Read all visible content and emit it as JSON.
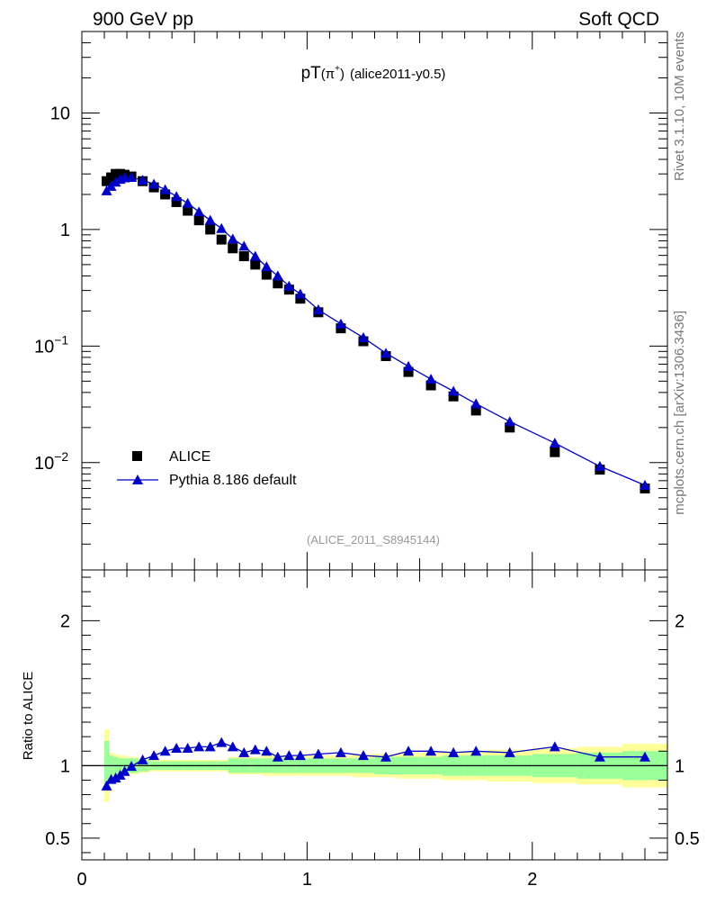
{
  "header": {
    "left": "900 GeV pp",
    "right": "Soft QCD"
  },
  "side_text": {
    "version": "Rivet 3.1.10,  10M events",
    "source": "mcplots.cern.ch [arXiv:1306.3436]"
  },
  "chart_data": [
    {
      "type": "scatter",
      "panel": "main",
      "title": "pT(π⁺) (alice2011-y0.5)",
      "title_main": "pT",
      "title_particle": "(π",
      "title_sup": "+",
      "title_close": ")",
      "title_tag": "(alice2011-y0.5)",
      "watermark": "(ALICE_2011_S8945144)",
      "xlim": [
        0,
        2.6
      ],
      "ylim": [
        0.0012,
        50
      ],
      "yscale": "log",
      "ytick_labels": [
        {
          "value": 10,
          "text": "10"
        },
        {
          "value": 1,
          "text": "1"
        },
        {
          "value": 0.1,
          "base": "10",
          "exp": "−1"
        },
        {
          "value": 0.01,
          "base": "10",
          "exp": "−2"
        }
      ],
      "legend": {
        "position": "bottom-left"
      },
      "series": [
        {
          "name": "ALICE",
          "marker": "square",
          "color": "#000000",
          "x": [
            0.11,
            0.13,
            0.15,
            0.17,
            0.19,
            0.22,
            0.27,
            0.32,
            0.37,
            0.42,
            0.47,
            0.52,
            0.57,
            0.62,
            0.67,
            0.72,
            0.77,
            0.82,
            0.87,
            0.92,
            0.97,
            1.05,
            1.15,
            1.25,
            1.35,
            1.45,
            1.55,
            1.65,
            1.75,
            1.9,
            2.1,
            2.3,
            2.5
          ],
          "y": [
            2.6,
            2.8,
            3.0,
            3.0,
            2.95,
            2.85,
            2.6,
            2.3,
            2.0,
            1.72,
            1.45,
            1.2,
            1.0,
            0.82,
            0.69,
            0.59,
            0.5,
            0.41,
            0.345,
            0.305,
            0.255,
            0.195,
            0.142,
            0.11,
            0.082,
            0.06,
            0.046,
            0.037,
            0.028,
            0.02,
            0.0123,
            0.0087,
            0.006
          ]
        },
        {
          "name": "Pythia 8.186 default",
          "marker": "triangle",
          "color": "#0000cc",
          "x": [
            0.11,
            0.13,
            0.15,
            0.17,
            0.19,
            0.22,
            0.27,
            0.32,
            0.37,
            0.42,
            0.47,
            0.52,
            0.57,
            0.62,
            0.67,
            0.72,
            0.77,
            0.82,
            0.87,
            0.92,
            0.97,
            1.05,
            1.15,
            1.25,
            1.35,
            1.45,
            1.55,
            1.65,
            1.75,
            1.9,
            2.1,
            2.3,
            2.5
          ],
          "y": [
            2.15,
            2.35,
            2.55,
            2.7,
            2.78,
            2.8,
            2.65,
            2.45,
            2.2,
            1.92,
            1.68,
            1.42,
            1.2,
            1.02,
            0.83,
            0.72,
            0.59,
            0.48,
            0.4,
            0.327,
            0.28,
            0.205,
            0.155,
            0.118,
            0.087,
            0.067,
            0.052,
            0.041,
            0.032,
            0.0225,
            0.0147,
            0.0093,
            0.0064
          ]
        }
      ]
    },
    {
      "type": "line",
      "panel": "ratio",
      "ylabel": "Ratio to ALICE",
      "xlim": [
        0,
        2.6
      ],
      "ylim": [
        0.35,
        2.35
      ],
      "xtick_labels": [
        "0",
        "1",
        "2"
      ],
      "ytick_labels": [
        "0.5",
        "1",
        "2"
      ],
      "bands": {
        "edges": [
          0.1,
          0.12,
          0.14,
          0.16,
          0.18,
          0.2,
          0.25,
          0.3,
          0.35,
          0.4,
          0.45,
          0.5,
          0.55,
          0.6,
          0.65,
          0.7,
          0.75,
          0.8,
          0.85,
          0.9,
          0.95,
          1.0,
          1.1,
          1.2,
          1.3,
          1.4,
          1.5,
          1.6,
          1.7,
          1.8,
          2.0,
          2.2,
          2.4,
          2.6
        ],
        "green_half": [
          0.17,
          0.07,
          0.06,
          0.05,
          0.05,
          0.05,
          0.04,
          0.03,
          0.03,
          0.03,
          0.03,
          0.03,
          0.03,
          0.03,
          0.05,
          0.05,
          0.05,
          0.05,
          0.05,
          0.05,
          0.05,
          0.05,
          0.05,
          0.05,
          0.06,
          0.06,
          0.06,
          0.07,
          0.07,
          0.07,
          0.08,
          0.09,
          0.1
        ],
        "yellow_half": [
          0.25,
          0.09,
          0.08,
          0.07,
          0.07,
          0.06,
          0.05,
          0.04,
          0.04,
          0.04,
          0.04,
          0.04,
          0.04,
          0.04,
          0.06,
          0.06,
          0.06,
          0.07,
          0.07,
          0.07,
          0.07,
          0.07,
          0.07,
          0.08,
          0.08,
          0.09,
          0.09,
          0.1,
          0.1,
          0.11,
          0.12,
          0.13,
          0.15
        ]
      },
      "series": [
        {
          "name": "Pythia 8.186 default",
          "color": "#0000cc",
          "x": [
            0.11,
            0.13,
            0.15,
            0.17,
            0.19,
            0.22,
            0.27,
            0.32,
            0.37,
            0.42,
            0.47,
            0.52,
            0.57,
            0.62,
            0.67,
            0.72,
            0.77,
            0.82,
            0.87,
            0.92,
            0.97,
            1.05,
            1.15,
            1.25,
            1.35,
            1.45,
            1.55,
            1.65,
            1.75,
            1.9,
            2.1,
            2.3,
            2.5
          ],
          "y": [
            0.86,
            0.905,
            0.915,
            0.935,
            0.96,
            0.995,
            1.04,
            1.07,
            1.1,
            1.12,
            1.12,
            1.13,
            1.13,
            1.16,
            1.13,
            1.09,
            1.11,
            1.1,
            1.06,
            1.07,
            1.07,
            1.08,
            1.09,
            1.07,
            1.06,
            1.1,
            1.1,
            1.09,
            1.1,
            1.09,
            1.13,
            1.06,
            1.06
          ]
        }
      ]
    }
  ]
}
